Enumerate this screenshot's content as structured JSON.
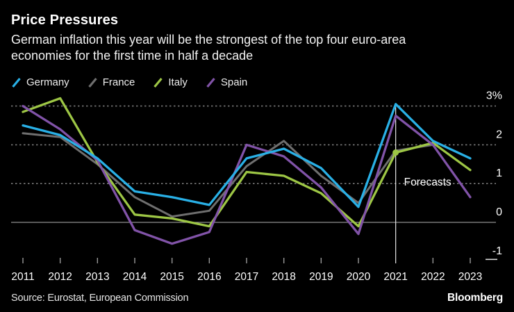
{
  "header": {
    "title": "Price Pressures",
    "subtitle_line1": "German inflation this year will be the strongest of the top four euro-area",
    "subtitle_line2": "economies for the first time in half a decade"
  },
  "legend": [
    {
      "label": "Germany",
      "color": "#29B0E6"
    },
    {
      "label": "France",
      "color": "#6F6F6F"
    },
    {
      "label": "Italy",
      "color": "#9DC645"
    },
    {
      "label": "Spain",
      "color": "#8153A8"
    }
  ],
  "chart_data": {
    "type": "line",
    "title": "Price Pressures",
    "x": [
      2011,
      2012,
      2013,
      2014,
      2015,
      2016,
      2017,
      2018,
      2019,
      2020,
      2021,
      2022,
      2023
    ],
    "series": [
      {
        "name": "Germany",
        "color": "#29B0E6",
        "values": [
          2.5,
          2.25,
          1.65,
          0.8,
          0.65,
          0.45,
          1.65,
          1.9,
          1.4,
          0.4,
          3.05,
          2.1,
          1.65
        ]
      },
      {
        "name": "France",
        "color": "#6F6F6F",
        "values": [
          2.3,
          2.2,
          1.5,
          0.65,
          0.15,
          0.3,
          1.45,
          2.1,
          1.2,
          0.5,
          1.85,
          2.0,
          null
        ]
      },
      {
        "name": "Italy",
        "color": "#9DC645",
        "values": [
          2.85,
          3.2,
          1.55,
          0.2,
          0.1,
          -0.1,
          1.3,
          1.2,
          0.75,
          -0.1,
          1.8,
          2.05,
          1.35
        ]
      },
      {
        "name": "Spain",
        "color": "#8153A8",
        "values": [
          3.0,
          2.4,
          1.6,
          -0.2,
          -0.55,
          -0.25,
          2.0,
          1.7,
          0.9,
          -0.3,
          2.75,
          2.0,
          0.65
        ]
      }
    ],
    "ylim": [
      -1,
      3
    ],
    "xlabel": "",
    "ylabel": "",
    "y_ticks": [
      {
        "label": "3%",
        "value": 3
      },
      {
        "label": "2",
        "value": 2
      },
      {
        "label": "1",
        "value": 1
      },
      {
        "label": "0",
        "value": 0
      },
      {
        "label": "-1",
        "value": -1
      }
    ],
    "grid": "dotted horizontal lines, solid zero line",
    "legend_position": "top-left",
    "forecast": {
      "label": "Forecasts",
      "start_year": 2021
    },
    "marker": {
      "series": "Italy",
      "year": 2021,
      "value": 1.8
    }
  },
  "footer": {
    "source": "Source: Eurostat, European Commission",
    "brand": "Bloomberg"
  }
}
